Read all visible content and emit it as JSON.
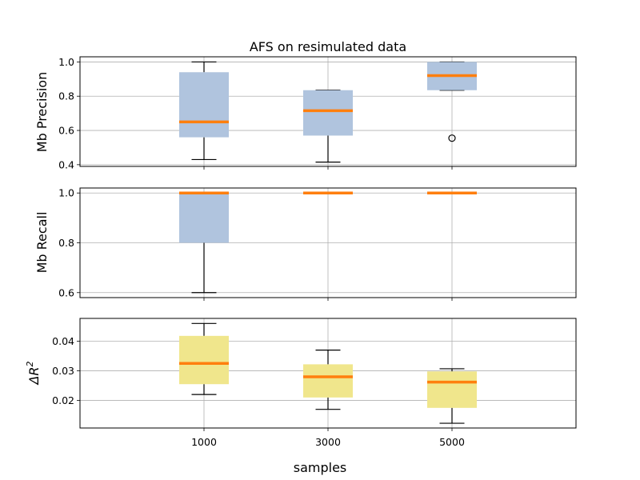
{
  "chart_data": {
    "type": "box",
    "title": "AFS on resimulated data",
    "xlabel": "samples",
    "categories": [
      "1000",
      "3000",
      "5000"
    ],
    "panels": [
      {
        "ylabel": "Mb Precision",
        "ylabel_math": false,
        "box_color": "#b0c4de",
        "ylim": [
          0.39,
          1.03
        ],
        "yticks": [
          0.4,
          0.6,
          0.8,
          1.0
        ],
        "ytick_labels": [
          "0.4",
          "0.6",
          "0.8",
          "1.0"
        ],
        "boxes": [
          {
            "whislo": 0.43,
            "q1": 0.56,
            "med": 0.65,
            "q3": 0.94,
            "whishi": 1.0,
            "fliers": []
          },
          {
            "whislo": 0.415,
            "q1": 0.57,
            "med": 0.715,
            "q3": 0.835,
            "whishi": 0.835,
            "fliers": []
          },
          {
            "whislo": 0.835,
            "q1": 0.835,
            "med": 0.92,
            "q3": 1.0,
            "whishi": 1.0,
            "fliers": [
              0.555
            ]
          }
        ]
      },
      {
        "ylabel": "Mb Recall",
        "ylabel_math": false,
        "box_color": "#b0c4de",
        "ylim": [
          0.58,
          1.02
        ],
        "yticks": [
          0.6,
          0.8,
          1.0
        ],
        "ytick_labels": [
          "0.6",
          "0.8",
          "1.0"
        ],
        "boxes": [
          {
            "whislo": 0.6,
            "q1": 0.8,
            "med": 1.0,
            "q3": 1.0,
            "whishi": 1.0,
            "fliers": []
          },
          {
            "whislo": 1.0,
            "q1": 1.0,
            "med": 1.0,
            "q3": 1.0,
            "whishi": 1.0,
            "fliers": []
          },
          {
            "whislo": 1.0,
            "q1": 1.0,
            "med": 1.0,
            "q3": 1.0,
            "whishi": 1.0,
            "fliers": []
          }
        ]
      },
      {
        "ylabel": "ΔR2",
        "ylabel_math": true,
        "ylabel_base": "ΔR",
        "ylabel_sup": "2",
        "box_color": "#f0e68c",
        "ylim": [
          0.0107,
          0.0477
        ],
        "yticks": [
          0.02,
          0.03,
          0.04
        ],
        "ytick_labels": [
          "0.02",
          "0.03",
          "0.04"
        ],
        "boxes": [
          {
            "whislo": 0.022,
            "q1": 0.0255,
            "med": 0.0325,
            "q3": 0.0418,
            "whishi": 0.046,
            "fliers": []
          },
          {
            "whislo": 0.017,
            "q1": 0.021,
            "med": 0.028,
            "q3": 0.0322,
            "whishi": 0.037,
            "fliers": []
          },
          {
            "whislo": 0.0123,
            "q1": 0.0175,
            "med": 0.0262,
            "q3": 0.0298,
            "whishi": 0.0307,
            "fliers": []
          }
        ]
      }
    ]
  }
}
